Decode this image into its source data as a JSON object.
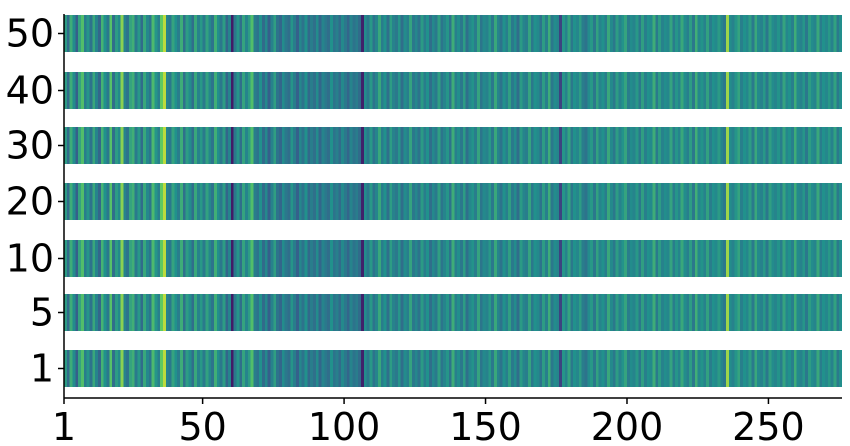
{
  "chart_data": {
    "type": "heatmap",
    "title": "",
    "xlabel": "",
    "ylabel": "",
    "x_range": [
      1,
      276
    ],
    "x_tick_labels": [
      "1",
      "50",
      "100",
      "150",
      "200",
      "250"
    ],
    "x_tick_values": [
      1,
      50,
      100,
      150,
      200,
      250
    ],
    "rows": [
      "1",
      "5",
      "10",
      "20",
      "30",
      "40",
      "50"
    ],
    "colormap": "viridis",
    "colormap_stops": [
      "#440154",
      "#3b528b",
      "#21918c",
      "#5ec962",
      "#fde725"
    ],
    "grid": false,
    "legend": "none",
    "values_note_free": true,
    "column_values_0_to_1": [
      0.55,
      0.35,
      0.62,
      0.48,
      0.3,
      0.58,
      0.7,
      0.42,
      0.52,
      0.38,
      0.6,
      0.45,
      0.33,
      0.65,
      0.5,
      0.4,
      0.72,
      0.36,
      0.55,
      0.47,
      0.82,
      0.44,
      0.38,
      0.58,
      0.63,
      0.41,
      0.53,
      0.35,
      0.6,
      0.46,
      0.39,
      0.68,
      0.52,
      0.43,
      0.75,
      0.9,
      0.45,
      0.4,
      0.58,
      0.5,
      0.42,
      0.62,
      0.37,
      0.55,
      0.48,
      0.36,
      0.6,
      0.44,
      0.53,
      0.41,
      0.57,
      0.46,
      0.38,
      0.63,
      0.49,
      0.4,
      0.55,
      0.33,
      0.45,
      0.08,
      0.4,
      0.52,
      0.36,
      0.58,
      0.45,
      0.55,
      0.7,
      0.42,
      0.38,
      0.5,
      0.35,
      0.47,
      0.3,
      0.44,
      0.56,
      0.38,
      0.33,
      0.48,
      0.4,
      0.36,
      0.52,
      0.42,
      0.31,
      0.46,
      0.38,
      0.5,
      0.34,
      0.42,
      0.37,
      0.48,
      0.33,
      0.45,
      0.4,
      0.36,
      0.5,
      0.38,
      0.43,
      0.35,
      0.47,
      0.4,
      0.33,
      0.45,
      0.38,
      0.42,
      0.35,
      0.1,
      0.48,
      0.4,
      0.53,
      0.38,
      0.45,
      0.6,
      0.42,
      0.5,
      0.37,
      0.55,
      0.44,
      0.4,
      0.52,
      0.36,
      0.48,
      0.43,
      0.58,
      0.4,
      0.46,
      0.38,
      0.54,
      0.42,
      0.5,
      0.36,
      0.47,
      0.41,
      0.56,
      0.39,
      0.45,
      0.52,
      0.38,
      0.62,
      0.43,
      0.49,
      0.4,
      0.55,
      0.37,
      0.46,
      0.51,
      0.42,
      0.58,
      0.39,
      0.47,
      0.44,
      0.53,
      0.4,
      0.6,
      0.45,
      0.38,
      0.5,
      0.43,
      0.56,
      0.41,
      0.48,
      0.36,
      0.54,
      0.45,
      0.42,
      0.58,
      0.4,
      0.5,
      0.47,
      0.38,
      0.55,
      0.43,
      0.62,
      0.4,
      0.48,
      0.45,
      0.2,
      0.52,
      0.44,
      0.58,
      0.4,
      0.5,
      0.46,
      0.55,
      0.42,
      0.38,
      0.48,
      0.53,
      0.4,
      0.57,
      0.45,
      0.5,
      0.42,
      0.6,
      0.47,
      0.4,
      0.55,
      0.44,
      0.51,
      0.58,
      0.42,
      0.48,
      0.45,
      0.53,
      0.4,
      0.56,
      0.43,
      0.5,
      0.47,
      0.62,
      0.41,
      0.55,
      0.44,
      0.49,
      0.46,
      0.58,
      0.42,
      0.52,
      0.45,
      0.6,
      0.48,
      0.43,
      0.55,
      0.4,
      0.63,
      0.46,
      0.51,
      0.44,
      0.57,
      0.42,
      0.5,
      0.47,
      0.54,
      0.45,
      0.4,
      0.85,
      0.48,
      0.44,
      0.52,
      0.58,
      0.43,
      0.5,
      0.46,
      0.55,
      0.41,
      0.6,
      0.47,
      0.44,
      0.53,
      0.4,
      0.56,
      0.48,
      0.45,
      0.51,
      0.42,
      0.58,
      0.46,
      0.5,
      0.43,
      0.62,
      0.47,
      0.44,
      0.52,
      0.4,
      0.55,
      0.48,
      0.45,
      0.6,
      0.42,
      0.5,
      0.46,
      0.53,
      0.44,
      0.57,
      0.41,
      0.49
    ]
  }
}
